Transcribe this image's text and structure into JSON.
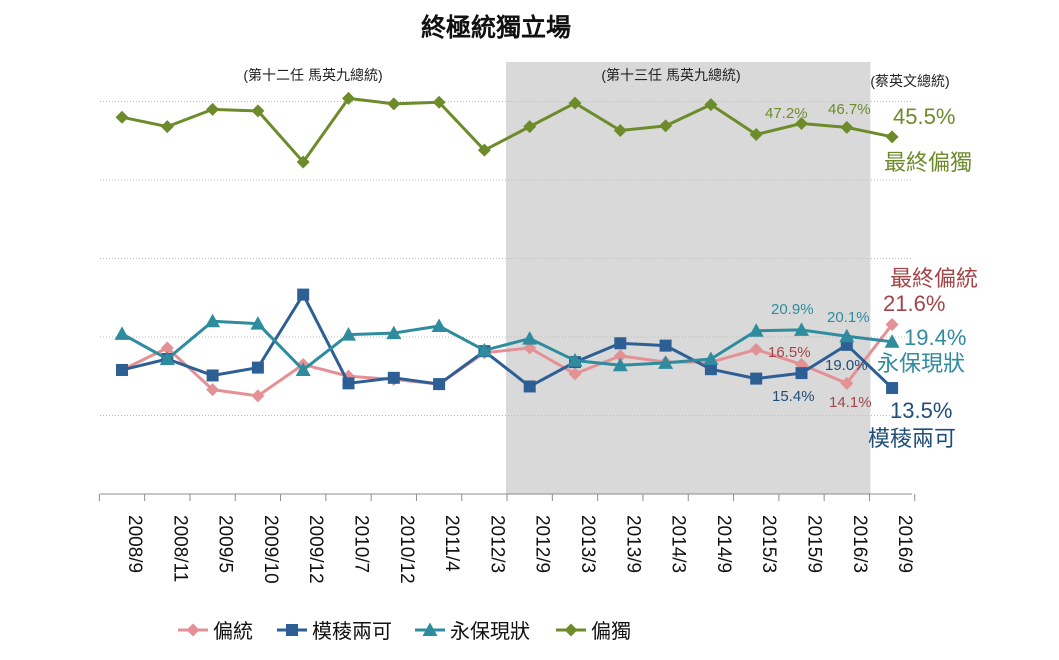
{
  "chart_data": {
    "type": "line",
    "title": "終極統獨立場",
    "categories": [
      "2008/9",
      "2008/11",
      "2009/5",
      "2009/10",
      "2009/12",
      "2010/7",
      "2010/12",
      "2011/4",
      "2012/3",
      "2012/9",
      "2013/3",
      "2013/9",
      "2014/3",
      "2014/9",
      "2015/3",
      "2015/9",
      "2016/3",
      "2016/9"
    ],
    "ylim": [
      0,
      60
    ],
    "grid": true,
    "shaded_period": {
      "from": "2012/9",
      "to": "2016/3"
    },
    "period_labels": [
      "(第十二任 馬英九總統)",
      "(第十三任 馬英九總統)",
      "(蔡英文總統)"
    ],
    "series": [
      {
        "name": "偏統",
        "color": "#E49196",
        "marker": "diamond",
        "values": [
          15.8,
          18.6,
          13.3,
          12.5,
          16.5,
          15.0,
          14.6,
          14.0,
          18.0,
          18.6,
          15.3,
          17.6,
          16.8,
          16.8,
          18.4,
          16.5,
          14.1,
          21.6
        ],
        "data_labels": {
          "15": "16.5%",
          "16": "14.1%"
        },
        "end_label": "21.6%",
        "end_name": "最終偏統",
        "label_color": "#A34547"
      },
      {
        "name": "模稜兩可",
        "color": "#2E5F94",
        "marker": "square",
        "values": [
          15.8,
          17.2,
          15.1,
          16.1,
          25.4,
          14.1,
          14.8,
          14.0,
          18.2,
          13.7,
          16.8,
          19.2,
          18.9,
          15.9,
          14.7,
          15.4,
          19.0,
          13.5
        ],
        "data_labels": {
          "15": "15.4%",
          "16": "19.0%"
        },
        "end_label": "13.5%",
        "end_name": "模稜兩可",
        "label_color": "#1F4E79"
      },
      {
        "name": "永保現狀",
        "color": "#2E8C9E",
        "marker": "triangle",
        "values": [
          20.4,
          17.2,
          22.0,
          21.7,
          15.8,
          20.3,
          20.5,
          21.4,
          18.3,
          19.8,
          17.0,
          16.4,
          16.7,
          17.2,
          20.8,
          20.9,
          20.1,
          19.4
        ],
        "data_labels": {
          "15": "20.9%",
          "16": "20.1%"
        },
        "end_label": "19.4%",
        "end_name": "永保現狀",
        "label_color": "#2E8C9E"
      },
      {
        "name": "偏獨",
        "color": "#6E8B2C",
        "marker": "diamond",
        "values": [
          48.0,
          46.8,
          49.0,
          48.8,
          42.3,
          50.4,
          49.7,
          49.9,
          43.8,
          46.8,
          49.8,
          46.3,
          46.9,
          49.6,
          45.8,
          47.2,
          46.7,
          45.5
        ],
        "data_labels": {
          "15": "47.2%",
          "16": "46.7%"
        },
        "end_label": "45.5%",
        "end_name": "最終偏獨",
        "label_color": "#6E8B2C"
      }
    ],
    "legend": "bottom"
  }
}
